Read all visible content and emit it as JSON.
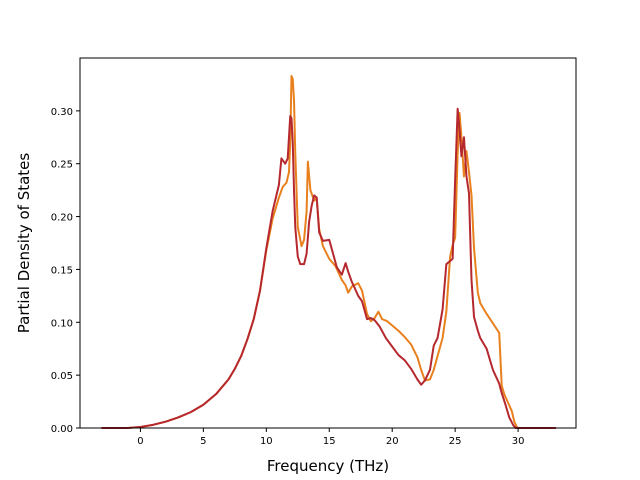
{
  "chart_data": {
    "type": "line",
    "title": "",
    "xlabel": "Frequency (THz)",
    "ylabel": "Partial Density of States",
    "xlim": [
      -4.8,
      34.6
    ],
    "ylim": [
      0.0,
      0.35
    ],
    "xticks": [
      "0",
      "5",
      "10",
      "15",
      "20",
      "25",
      "30"
    ],
    "yticks": [
      "0.00",
      "0.05",
      "0.10",
      "0.15",
      "0.20",
      "0.25",
      "0.30"
    ],
    "grid": false,
    "legend": "none",
    "series": [
      {
        "color": "#e8801e",
        "x": [
          -3.1,
          -1,
          0,
          1,
          2,
          3,
          4,
          5,
          6,
          7,
          7.5,
          8,
          8.5,
          9,
          9.5,
          10,
          10.5,
          11,
          11.3,
          11.6,
          11.8,
          11.9,
          12.0,
          12.1,
          12.2,
          12.3,
          12.5,
          12.8,
          13.0,
          13.2,
          13.3,
          13.5,
          13.8,
          14.0,
          14.2,
          14.5,
          15.0,
          15.5,
          16.0,
          16.3,
          16.5,
          16.8,
          17.0,
          17.3,
          17.6,
          18.0,
          18.3,
          18.6,
          18.9,
          19.2,
          19.6,
          20.0,
          20.5,
          21.0,
          21.5,
          22.0,
          22.3,
          22.6,
          23.0,
          23.3,
          23.6,
          24.0,
          24.3,
          24.6,
          24.8,
          25.0,
          25.2,
          25.35,
          25.5,
          25.7,
          25.9,
          26.1,
          26.3,
          26.5,
          26.8,
          27.0,
          27.5,
          28.0,
          28.5,
          28.7,
          28.9,
          29.2,
          29.5,
          29.7,
          29.9,
          30.0,
          31.0,
          33.0
        ],
        "values": [
          0.0,
          0.0,
          0.001,
          0.003,
          0.006,
          0.01,
          0.015,
          0.022,
          0.032,
          0.046,
          0.056,
          0.068,
          0.084,
          0.103,
          0.13,
          0.168,
          0.198,
          0.218,
          0.228,
          0.232,
          0.242,
          0.27,
          0.333,
          0.33,
          0.31,
          0.26,
          0.19,
          0.172,
          0.178,
          0.205,
          0.252,
          0.225,
          0.215,
          0.218,
          0.188,
          0.172,
          0.16,
          0.153,
          0.14,
          0.135,
          0.128,
          0.134,
          0.135,
          0.137,
          0.13,
          0.108,
          0.101,
          0.104,
          0.11,
          0.103,
          0.101,
          0.097,
          0.092,
          0.086,
          0.079,
          0.067,
          0.055,
          0.045,
          0.046,
          0.055,
          0.068,
          0.085,
          0.11,
          0.162,
          0.173,
          0.18,
          0.26,
          0.298,
          0.275,
          0.238,
          0.262,
          0.242,
          0.22,
          0.17,
          0.128,
          0.118,
          0.108,
          0.099,
          0.09,
          0.04,
          0.032,
          0.024,
          0.016,
          0.006,
          0.001,
          0.0,
          0.0,
          0.0
        ]
      },
      {
        "color": "#b5282e",
        "x": [
          -3.1,
          -1,
          0,
          1,
          2,
          3,
          4,
          5,
          6,
          7,
          7.5,
          8,
          8.5,
          9,
          9.5,
          10,
          10.5,
          11,
          11.2,
          11.5,
          11.7,
          11.9,
          12.0,
          12.1,
          12.2,
          12.3,
          12.5,
          12.7,
          13.0,
          13.2,
          13.4,
          13.6,
          13.8,
          14.0,
          14.2,
          14.5,
          15.0,
          15.3,
          15.6,
          16.0,
          16.3,
          16.5,
          16.8,
          17.0,
          17.3,
          17.6,
          18.0,
          18.3,
          18.6,
          19.0,
          19.5,
          20.0,
          20.5,
          21.0,
          21.5,
          22.0,
          22.3,
          22.6,
          23.0,
          23.3,
          23.6,
          24.0,
          24.3,
          24.6,
          24.8,
          25.0,
          25.2,
          25.35,
          25.5,
          25.7,
          25.9,
          26.1,
          26.3,
          26.5,
          26.8,
          27.0,
          27.5,
          28.0,
          28.5,
          28.7,
          29.0,
          29.3,
          29.6,
          29.8,
          30.0,
          31.0,
          33.0
        ],
        "values": [
          0.0,
          0.0,
          0.001,
          0.003,
          0.006,
          0.01,
          0.015,
          0.022,
          0.032,
          0.046,
          0.056,
          0.068,
          0.084,
          0.103,
          0.13,
          0.17,
          0.205,
          0.23,
          0.255,
          0.25,
          0.255,
          0.295,
          0.293,
          0.27,
          0.225,
          0.19,
          0.162,
          0.155,
          0.155,
          0.165,
          0.195,
          0.21,
          0.22,
          0.218,
          0.185,
          0.177,
          0.178,
          0.165,
          0.152,
          0.145,
          0.156,
          0.148,
          0.138,
          0.133,
          0.125,
          0.12,
          0.103,
          0.104,
          0.102,
          0.096,
          0.085,
          0.077,
          0.069,
          0.064,
          0.056,
          0.046,
          0.041,
          0.045,
          0.055,
          0.078,
          0.085,
          0.112,
          0.155,
          0.158,
          0.16,
          0.235,
          0.302,
          0.282,
          0.257,
          0.275,
          0.238,
          0.222,
          0.14,
          0.105,
          0.092,
          0.085,
          0.075,
          0.055,
          0.042,
          0.033,
          0.022,
          0.01,
          0.003,
          0.0,
          0.0,
          0.0,
          0.0
        ]
      }
    ]
  }
}
